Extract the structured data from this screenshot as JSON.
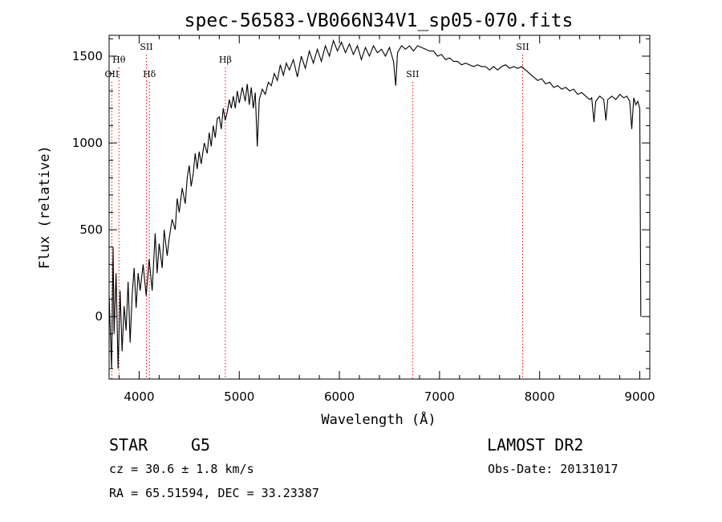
{
  "chart_data": {
    "type": "line",
    "title": "spec-56583-VB066N34V1_sp05-070.fits",
    "xlabel": "Wavelength (Å)",
    "ylabel": "Flux (relative)",
    "xlim": [
      3700,
      9100
    ],
    "ylim": [
      -360,
      1620
    ],
    "x_ticks": [
      4000,
      5000,
      6000,
      7000,
      8000,
      9000
    ],
    "y_ticks": [
      0,
      500,
      1000,
      1500
    ],
    "grid": false,
    "line_color": "#000000",
    "marker_color": "#ff0000",
    "series": [
      {
        "values": [
          [
            3700,
            120
          ],
          [
            3725,
            -300
          ],
          [
            3740,
            400
          ],
          [
            3750,
            -100
          ],
          [
            3770,
            250
          ],
          [
            3790,
            -300
          ],
          [
            3810,
            150
          ],
          [
            3830,
            -200
          ],
          [
            3850,
            60
          ],
          [
            3870,
            -80
          ],
          [
            3890,
            200
          ],
          [
            3910,
            -150
          ],
          [
            3930,
            120
          ],
          [
            3950,
            280
          ],
          [
            3970,
            50
          ],
          [
            3990,
            250
          ],
          [
            4010,
            150
          ],
          [
            4040,
            300
          ],
          [
            4070,
            120
          ],
          [
            4100,
            330
          ],
          [
            4130,
            150
          ],
          [
            4160,
            480
          ],
          [
            4180,
            250
          ],
          [
            4200,
            420
          ],
          [
            4230,
            280
          ],
          [
            4250,
            500
          ],
          [
            4280,
            350
          ],
          [
            4300,
            450
          ],
          [
            4330,
            560
          ],
          [
            4360,
            500
          ],
          [
            4380,
            680
          ],
          [
            4400,
            600
          ],
          [
            4430,
            740
          ],
          [
            4460,
            650
          ],
          [
            4480,
            800
          ],
          [
            4500,
            870
          ],
          [
            4520,
            750
          ],
          [
            4540,
            820
          ],
          [
            4560,
            940
          ],
          [
            4580,
            850
          ],
          [
            4600,
            950
          ],
          [
            4620,
            880
          ],
          [
            4650,
            1000
          ],
          [
            4680,
            940
          ],
          [
            4700,
            1060
          ],
          [
            4720,
            980
          ],
          [
            4740,
            1100
          ],
          [
            4760,
            1030
          ],
          [
            4780,
            1140
          ],
          [
            4800,
            1150
          ],
          [
            4820,
            1080
          ],
          [
            4840,
            1200
          ],
          [
            4860,
            1130
          ],
          [
            4880,
            1180
          ],
          [
            4900,
            1250
          ],
          [
            4920,
            1200
          ],
          [
            4940,
            1270
          ],
          [
            4960,
            1200
          ],
          [
            4980,
            1300
          ],
          [
            5000,
            1230
          ],
          [
            5030,
            1320
          ],
          [
            5060,
            1240
          ],
          [
            5080,
            1340
          ],
          [
            5100,
            1220
          ],
          [
            5120,
            1320
          ],
          [
            5140,
            1200
          ],
          [
            5160,
            1290
          ],
          [
            5180,
            980
          ],
          [
            5200,
            1250
          ],
          [
            5230,
            1310
          ],
          [
            5260,
            1280
          ],
          [
            5290,
            1350
          ],
          [
            5320,
            1330
          ],
          [
            5350,
            1400
          ],
          [
            5380,
            1360
          ],
          [
            5410,
            1450
          ],
          [
            5440,
            1390
          ],
          [
            5470,
            1460
          ],
          [
            5500,
            1420
          ],
          [
            5540,
            1480
          ],
          [
            5580,
            1380
          ],
          [
            5620,
            1500
          ],
          [
            5660,
            1430
          ],
          [
            5700,
            1530
          ],
          [
            5740,
            1460
          ],
          [
            5780,
            1540
          ],
          [
            5820,
            1470
          ],
          [
            5860,
            1560
          ],
          [
            5900,
            1500
          ],
          [
            5940,
            1590
          ],
          [
            5980,
            1530
          ],
          [
            6020,
            1580
          ],
          [
            6060,
            1520
          ],
          [
            6100,
            1570
          ],
          [
            6140,
            1510
          ],
          [
            6180,
            1560
          ],
          [
            6220,
            1480
          ],
          [
            6260,
            1550
          ],
          [
            6300,
            1500
          ],
          [
            6340,
            1560
          ],
          [
            6380,
            1520
          ],
          [
            6420,
            1540
          ],
          [
            6460,
            1500
          ],
          [
            6500,
            1550
          ],
          [
            6540,
            1470
          ],
          [
            6563,
            1330
          ],
          [
            6580,
            1520
          ],
          [
            6620,
            1560
          ],
          [
            6660,
            1540
          ],
          [
            6700,
            1560
          ],
          [
            6740,
            1530
          ],
          [
            6780,
            1560
          ],
          [
            6820,
            1550
          ],
          [
            6860,
            1540
          ],
          [
            6900,
            1530
          ],
          [
            6940,
            1530
          ],
          [
            6980,
            1500
          ],
          [
            7020,
            1510
          ],
          [
            7060,
            1480
          ],
          [
            7100,
            1490
          ],
          [
            7140,
            1470
          ],
          [
            7180,
            1470
          ],
          [
            7220,
            1450
          ],
          [
            7260,
            1460
          ],
          [
            7300,
            1450
          ],
          [
            7340,
            1440
          ],
          [
            7380,
            1450
          ],
          [
            7420,
            1440
          ],
          [
            7460,
            1440
          ],
          [
            7500,
            1420
          ],
          [
            7540,
            1440
          ],
          [
            7580,
            1420
          ],
          [
            7620,
            1440
          ],
          [
            7660,
            1450
          ],
          [
            7700,
            1430
          ],
          [
            7740,
            1440
          ],
          [
            7780,
            1430
          ],
          [
            7820,
            1440
          ],
          [
            7860,
            1420
          ],
          [
            7900,
            1400
          ],
          [
            7940,
            1380
          ],
          [
            7980,
            1360
          ],
          [
            8020,
            1370
          ],
          [
            8060,
            1340
          ],
          [
            8100,
            1350
          ],
          [
            8140,
            1320
          ],
          [
            8180,
            1330
          ],
          [
            8220,
            1310
          ],
          [
            8260,
            1320
          ],
          [
            8300,
            1300
          ],
          [
            8340,
            1310
          ],
          [
            8380,
            1280
          ],
          [
            8420,
            1290
          ],
          [
            8460,
            1270
          ],
          [
            8500,
            1250
          ],
          [
            8520,
            1260
          ],
          [
            8542,
            1120
          ],
          [
            8560,
            1240
          ],
          [
            8600,
            1270
          ],
          [
            8640,
            1250
          ],
          [
            8662,
            1130
          ],
          [
            8680,
            1250
          ],
          [
            8720,
            1270
          ],
          [
            8760,
            1250
          ],
          [
            8800,
            1280
          ],
          [
            8840,
            1260
          ],
          [
            8870,
            1270
          ],
          [
            8900,
            1240
          ],
          [
            8920,
            1080
          ],
          [
            8940,
            1260
          ],
          [
            8960,
            1220
          ],
          [
            8980,
            1240
          ],
          [
            9000,
            1200
          ],
          [
            9010,
            0
          ]
        ]
      }
    ],
    "markers": [
      {
        "label": "OII",
        "wavelength": 3727,
        "position": "low"
      },
      {
        "label": "Hθ",
        "wavelength": 3798,
        "position": "mid"
      },
      {
        "label": "SII",
        "wavelength": 4072,
        "position": "top"
      },
      {
        "label": "Hδ",
        "wavelength": 4102,
        "position": "low"
      },
      {
        "label": "Hβ",
        "wavelength": 4861,
        "position": "mid"
      },
      {
        "label": "SII",
        "wavelength": 6731,
        "position": "low"
      },
      {
        "label": "SII",
        "wavelength": 7830,
        "position": "top"
      }
    ]
  },
  "info": {
    "object_class": "STAR",
    "subclass": "G5",
    "survey": "LAMOST DR2",
    "cz_text": "cz = 30.6 ± 1.8 km/s",
    "obs_date": "Obs-Date: 20131017",
    "coords": "RA =  65.51594, DEC =  33.23387"
  }
}
